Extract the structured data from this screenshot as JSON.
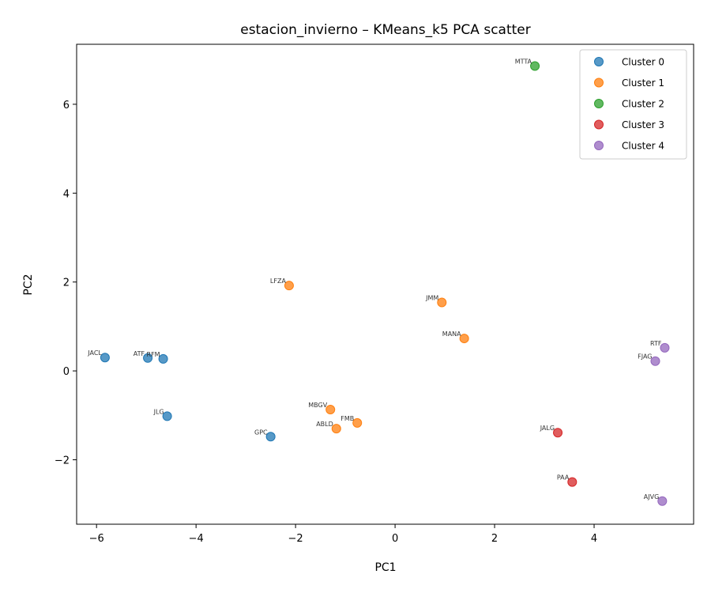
{
  "chart_data": {
    "type": "scatter",
    "title": "estacion_invierno – KMeans_k5 PCA scatter",
    "xlabel": "PC1",
    "ylabel": "PC2",
    "xlim": [
      -6.4,
      6.0
    ],
    "ylim": [
      -3.45,
      7.35
    ],
    "xticks": [
      -6,
      -4,
      -2,
      0,
      2,
      4
    ],
    "yticks": [
      -2,
      0,
      2,
      4,
      6
    ],
    "grid": false,
    "legend_position": "top-right",
    "series": [
      {
        "name": "Cluster 0",
        "color": "#1f77b4",
        "points": [
          {
            "x": -5.83,
            "y": 0.3,
            "label": "JACL"
          },
          {
            "x": -4.97,
            "y": 0.29,
            "label": "ATF"
          },
          {
            "x": -4.66,
            "y": 0.27,
            "label": "RFM"
          },
          {
            "x": -4.58,
            "y": -1.02,
            "label": "JLG"
          },
          {
            "x": -2.5,
            "y": -1.48,
            "label": "GPC"
          }
        ]
      },
      {
        "name": "Cluster 1",
        "color": "#ff7f0e",
        "points": [
          {
            "x": -2.13,
            "y": 1.92,
            "label": "LFZA"
          },
          {
            "x": 0.94,
            "y": 1.54,
            "label": "JMM"
          },
          {
            "x": 1.39,
            "y": 0.73,
            "label": "MANA"
          },
          {
            "x": -1.3,
            "y": -0.87,
            "label": "MBGV"
          },
          {
            "x": -1.18,
            "y": -1.3,
            "label": "ABLD"
          },
          {
            "x": -0.76,
            "y": -1.17,
            "label": "FMB"
          }
        ]
      },
      {
        "name": "Cluster 2",
        "color": "#2ca02c",
        "points": [
          {
            "x": 2.81,
            "y": 6.86,
            "label": "MTTA"
          }
        ]
      },
      {
        "name": "Cluster 3",
        "color": "#d62728",
        "points": [
          {
            "x": 3.27,
            "y": -1.39,
            "label": "JALG"
          },
          {
            "x": 3.56,
            "y": -2.5,
            "label": "PAA"
          }
        ]
      },
      {
        "name": "Cluster 4",
        "color": "#9467bd",
        "points": [
          {
            "x": 5.42,
            "y": 0.52,
            "label": "RTF"
          },
          {
            "x": 5.23,
            "y": 0.22,
            "label": "FJAG"
          },
          {
            "x": 5.37,
            "y": -2.93,
            "label": "AJVG"
          }
        ]
      }
    ]
  }
}
